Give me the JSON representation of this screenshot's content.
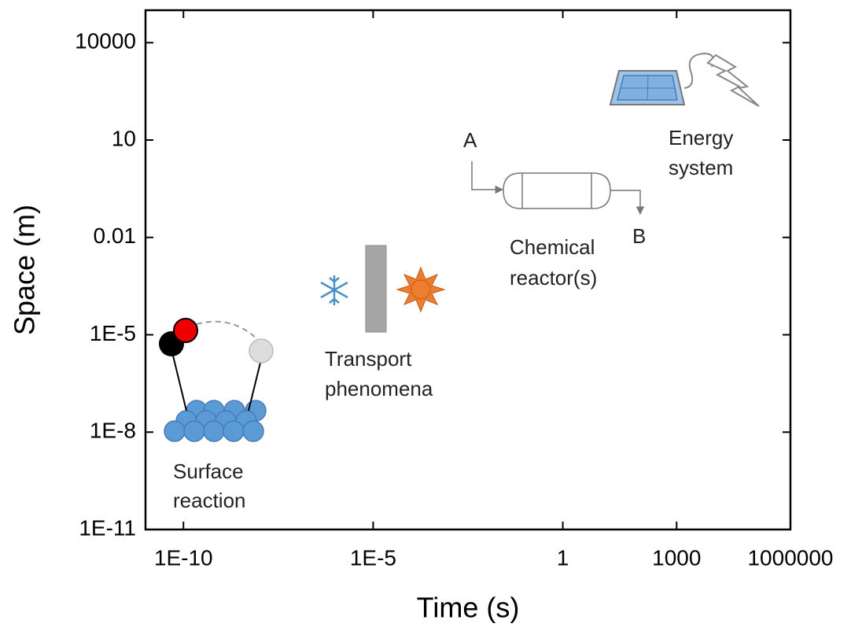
{
  "chart_data": {
    "type": "scatter",
    "x_label": "Time (s)",
    "y_label": "Space (m)",
    "log_x": true,
    "log_y": true,
    "xlim": [
      1e-11,
      1000000
    ],
    "ylim": [
      1e-11,
      100000
    ],
    "xticks": [
      {
        "value": 1e-10,
        "label": "1E-10"
      },
      {
        "value": 1e-05,
        "label": "1E-5"
      },
      1,
      1000,
      1000000
    ],
    "yticks": [
      {
        "value": 1e-11,
        "label": "1E-11"
      },
      {
        "value": 1e-08,
        "label": "1E-8"
      },
      {
        "value": 1e-05,
        "label": "1E-5"
      },
      0.01,
      10,
      10000
    ],
    "annotations": [
      {
        "lines": [
          "Surface",
          "reaction"
        ]
      },
      {
        "lines": [
          "Transport",
          "phenomena"
        ]
      },
      {
        "lines": [
          "Chemical",
          "reactor(s)"
        ]
      },
      {
        "lines": [
          "Energy",
          "system"
        ]
      },
      {
        "lines": [
          "A"
        ]
      },
      {
        "lines": [
          "B"
        ]
      }
    ]
  }
}
